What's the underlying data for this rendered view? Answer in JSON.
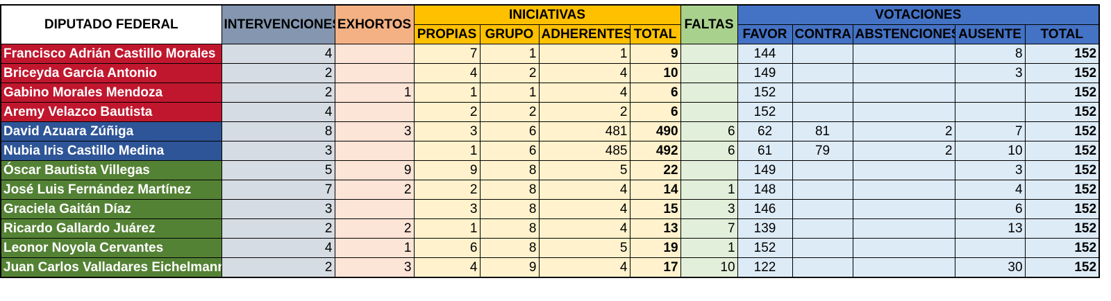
{
  "headers": {
    "diputado": "DIPUTADO FEDERAL",
    "intervenciones": "INTERVENCIONES",
    "exhortos": "EXHORTOS",
    "iniciativas": "INICIATIVAS",
    "propias": "PROPIAS",
    "grupo": "GRUPO",
    "adherentes": "ADHERENTES",
    "ini_total": "TOTAL",
    "faltas": "FALTAS",
    "votaciones": "VOTACIONES",
    "favor": "FAVOR",
    "contra": "CONTRA",
    "abstenciones": "ABSTENCIONES",
    "ausente": "AUSENTE",
    "vot_total": "TOTAL"
  },
  "colors": {
    "red_party": "#c0172e",
    "blue_party": "#2e5597",
    "green_party": "#548235"
  },
  "rows": [
    {
      "name": "Francisco Adrián Castillo Morales",
      "party_color": "#c0172e",
      "intervenciones": "4",
      "exhortos": "",
      "propias": "7",
      "grupo": "1",
      "adherentes": "1",
      "ini_total": "9",
      "faltas": "",
      "favor": "144",
      "contra": "",
      "abstenciones": "",
      "ausente": "8",
      "vot_total": "152"
    },
    {
      "name": "Briceyda García Antonio",
      "party_color": "#c0172e",
      "intervenciones": "2",
      "exhortos": "",
      "propias": "4",
      "grupo": "2",
      "adherentes": "4",
      "ini_total": "10",
      "faltas": "",
      "favor": "149",
      "contra": "",
      "abstenciones": "",
      "ausente": "3",
      "vot_total": "152"
    },
    {
      "name": "Gabino Morales Mendoza",
      "party_color": "#c0172e",
      "intervenciones": "2",
      "exhortos": "1",
      "propias": "1",
      "grupo": "1",
      "adherentes": "4",
      "ini_total": "6",
      "faltas": "",
      "favor": "152",
      "contra": "",
      "abstenciones": "",
      "ausente": "",
      "vot_total": "152"
    },
    {
      "name": "Aremy Velazco Bautista",
      "party_color": "#c0172e",
      "intervenciones": "4",
      "exhortos": "",
      "propias": "2",
      "grupo": "2",
      "adherentes": "2",
      "ini_total": "6",
      "faltas": "",
      "favor": "152",
      "contra": "",
      "abstenciones": "",
      "ausente": "",
      "vot_total": "152"
    },
    {
      "name": "David Azuara Zúñiga",
      "party_color": "#2e5597",
      "intervenciones": "8",
      "exhortos": "3",
      "propias": "3",
      "grupo": "6",
      "adherentes": "481",
      "ini_total": "490",
      "faltas": "6",
      "favor": "62",
      "contra": "81",
      "abstenciones": "2",
      "ausente": "7",
      "vot_total": "152"
    },
    {
      "name": "Nubia Iris Castillo Medina",
      "party_color": "#2e5597",
      "intervenciones": "3",
      "exhortos": "",
      "propias": "1",
      "grupo": "6",
      "adherentes": "485",
      "ini_total": "492",
      "faltas": "6",
      "favor": "61",
      "contra": "79",
      "abstenciones": "2",
      "ausente": "10",
      "vot_total": "152"
    },
    {
      "name": "Óscar Bautista Villegas",
      "party_color": "#548235",
      "intervenciones": "5",
      "exhortos": "9",
      "propias": "9",
      "grupo": "8",
      "adherentes": "5",
      "ini_total": "22",
      "faltas": "",
      "favor": "149",
      "contra": "",
      "abstenciones": "",
      "ausente": "3",
      "vot_total": "152"
    },
    {
      "name": "José Luis Fernández Martínez",
      "party_color": "#548235",
      "intervenciones": "7",
      "exhortos": "2",
      "propias": "2",
      "grupo": "8",
      "adherentes": "4",
      "ini_total": "14",
      "faltas": "1",
      "favor": "148",
      "contra": "",
      "abstenciones": "",
      "ausente": "4",
      "vot_total": "152"
    },
    {
      "name": "Graciela Gaitán Díaz",
      "party_color": "#548235",
      "intervenciones": "3",
      "exhortos": "",
      "propias": "3",
      "grupo": "8",
      "adherentes": "4",
      "ini_total": "15",
      "faltas": "3",
      "favor": "146",
      "contra": "",
      "abstenciones": "",
      "ausente": "6",
      "vot_total": "152"
    },
    {
      "name": "Ricardo Gallardo Juárez",
      "party_color": "#548235",
      "intervenciones": "2",
      "exhortos": "2",
      "propias": "1",
      "grupo": "8",
      "adherentes": "4",
      "ini_total": "13",
      "faltas": "7",
      "favor": "139",
      "contra": "",
      "abstenciones": "",
      "ausente": "13",
      "vot_total": "152"
    },
    {
      "name": "Leonor Noyola Cervantes",
      "party_color": "#548235",
      "intervenciones": "4",
      "exhortos": "1",
      "propias": "6",
      "grupo": "8",
      "adherentes": "5",
      "ini_total": "19",
      "faltas": "1",
      "favor": "152",
      "contra": "",
      "abstenciones": "",
      "ausente": "",
      "vot_total": "152"
    },
    {
      "name": "Juan Carlos Valladares Eichelmann",
      "party_color": "#548235",
      "intervenciones": "2",
      "exhortos": "3",
      "propias": "4",
      "grupo": "9",
      "adherentes": "4",
      "ini_total": "17",
      "faltas": "10",
      "favor": "122",
      "contra": "",
      "abstenciones": "",
      "ausente": "30",
      "vot_total": "152"
    }
  ]
}
